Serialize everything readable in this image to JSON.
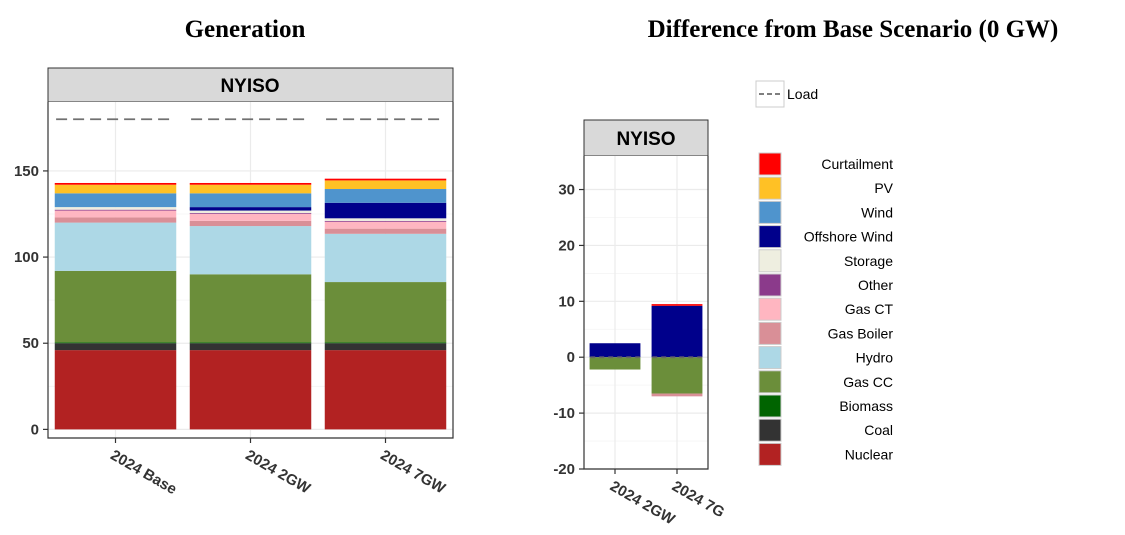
{
  "titles": {
    "left": "Generation",
    "right": "Difference from Base Scenario (0 GW)"
  },
  "colors": {
    "Nuclear": "#b22222",
    "Coal": "#333333",
    "Biomass": "#006400",
    "Gas CC": "#6b8e3a",
    "Hydro": "#add8e6",
    "Gas Boiler": "#d98f97",
    "Gas CT": "#ffb6c1",
    "Other": "#8b3a8b",
    "Storage": "#eeeee0",
    "Offshore Wind": "#00008b",
    "Wind": "#4f94cd",
    "PV": "#ffc125",
    "Curtailment": "#ff0000"
  },
  "chart_data": [
    {
      "type": "bar",
      "title": "Generation",
      "facet": "NYISO",
      "stacked": true,
      "categories": [
        "2024 Base",
        "2024 2GW",
        "2024 7GW"
      ],
      "yticks": [
        0,
        50,
        100,
        150
      ],
      "ylim": [
        -5,
        190
      ],
      "load": [
        180,
        180,
        180
      ],
      "series": [
        {
          "name": "Nuclear",
          "values": [
            46,
            46,
            46
          ]
        },
        {
          "name": "Coal",
          "values": [
            4,
            4,
            4
          ]
        },
        {
          "name": "Biomass",
          "values": [
            0.5,
            0.5,
            0.5
          ]
        },
        {
          "name": "Gas CC",
          "values": [
            41.5,
            39.5,
            35
          ]
        },
        {
          "name": "Hydro",
          "values": [
            28,
            28,
            28
          ]
        },
        {
          "name": "Gas Boiler",
          "values": [
            3,
            3,
            3
          ]
        },
        {
          "name": "Gas CT",
          "values": [
            4,
            4,
            4
          ]
        },
        {
          "name": "Other",
          "values": [
            0.5,
            0.5,
            0.5
          ]
        },
        {
          "name": "Storage",
          "values": [
            1.5,
            1.5,
            1.5
          ]
        },
        {
          "name": "Offshore Wind",
          "values": [
            0,
            2,
            9
          ]
        },
        {
          "name": "Wind",
          "values": [
            8,
            8,
            8
          ]
        },
        {
          "name": "PV",
          "values": [
            5,
            5,
            5
          ]
        },
        {
          "name": "Curtailment",
          "values": [
            1,
            1,
            1
          ]
        }
      ],
      "grid": true
    },
    {
      "type": "bar",
      "title": "Difference from Base Scenario (0 GW)",
      "facet": "NYISO",
      "stacked": true,
      "categories": [
        "2024 2GW",
        "2024 7G"
      ],
      "yticks": [
        -20,
        -10,
        0,
        10,
        20,
        30
      ],
      "ylim": [
        -20,
        36
      ],
      "load": [
        0,
        0
      ],
      "series": [
        {
          "name": "Offshore Wind",
          "values": [
            2.5,
            9.2
          ]
        },
        {
          "name": "Curtailment",
          "values": [
            0,
            0.3
          ]
        },
        {
          "name": "Gas CC",
          "values": [
            -2.2,
            -6.5
          ]
        },
        {
          "name": "Gas Boiler",
          "values": [
            0,
            -0.5
          ]
        }
      ],
      "grid": true
    }
  ],
  "legend": {
    "load_label": "Load",
    "items": [
      "Curtailment",
      "PV",
      "Wind",
      "Offshore Wind",
      "Storage",
      "Other",
      "Gas CT",
      "Gas Boiler",
      "Hydro",
      "Gas CC",
      "Biomass",
      "Coal",
      "Nuclear"
    ]
  }
}
